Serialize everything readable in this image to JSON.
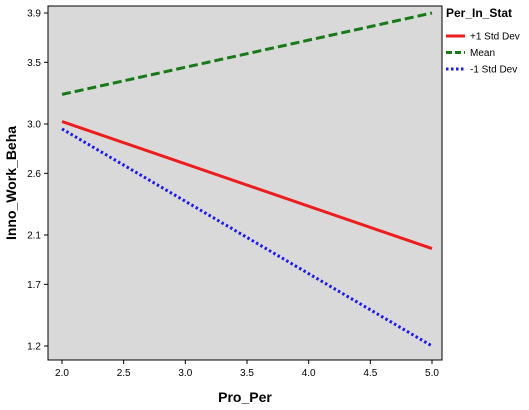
{
  "chart_data": {
    "type": "line",
    "xlabel": "Pro_Per",
    "ylabel": "Inno_Work_Beha",
    "xlim": [
      2.0,
      5.0
    ],
    "ylim": [
      1.2,
      3.9
    ],
    "xticks": [
      "2.0",
      "2.5",
      "3.0",
      "3.5",
      "4.0",
      "4.5",
      "5.0"
    ],
    "yticks": [
      "3.9",
      "3.5",
      "3.0",
      "2.6",
      "2.1",
      "1.7",
      "1.2"
    ],
    "legend": {
      "title": "Per_In_Stat",
      "placement": "right"
    },
    "grid": false,
    "background": "#d9d9d9",
    "series": [
      {
        "name": "+1 Std Dev",
        "x": [
          2.0,
          5.0
        ],
        "y": [
          3.02,
          1.99
        ],
        "color": "#ee1c1c",
        "style": "solid"
      },
      {
        "name": "Mean",
        "x": [
          2.0,
          5.0
        ],
        "y": [
          3.24,
          3.9
        ],
        "color": "#167a16",
        "style": "dashed"
      },
      {
        "name": "-1 Std Dev",
        "x": [
          2.0,
          5.0
        ],
        "y": [
          2.96,
          1.2
        ],
        "color": "#1a1aee",
        "style": "dotted"
      }
    ]
  }
}
